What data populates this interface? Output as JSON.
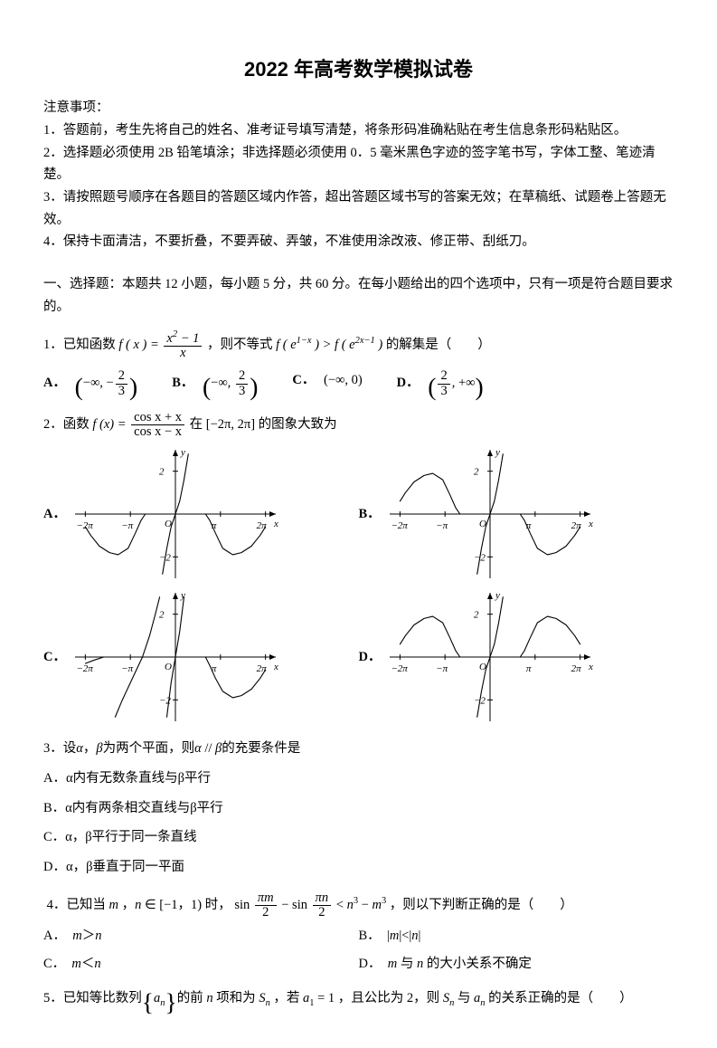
{
  "title": "2022 年高考数学模拟试卷",
  "instructions_head": "注意事项：",
  "instructions": [
    "1．答题前，考生先将自己的姓名、准考证号填写清楚，将条形码准确粘贴在考生信息条形码粘贴区。",
    "2．选择题必须使用 2B 铅笔填涂；非选择题必须使用 0．5 毫米黑色字迹的签字笔书写，字体工整、笔迹清楚。",
    "3．请按照题号顺序在各题目的答题区域内作答，超出答题区域书写的答案无效；在草稿纸、试题卷上答题无效。",
    "4．保持卡面清洁，不要折叠，不要弄破、弄皱，不准使用涂改液、修正带、刮纸刀。"
  ],
  "section1": "一、选择题：本题共 12 小题，每小题 5 分，共 60 分。在每小题给出的四个选项中，只有一项是符合题目要求的。",
  "q1": {
    "stem_pre": "1．已知函数",
    "f_lhs": "f ( x ) =",
    "frac_num": "x² − 1",
    "frac_den": "x",
    "stem_mid": "，则不等式",
    "ineq": "f ( e^{1−x} ) > f ( e^{2x−1} )",
    "stem_post": " 的解集是（　　）",
    "opts": {
      "A": "( −∞ , −2/3 )",
      "B": "( −∞ , 2/3 )",
      "C": "(−∞, 0)",
      "D": "( 2/3 , +∞ )"
    }
  },
  "q2": {
    "stem_pre": "2．函数",
    "f_lhs": "f (x) =",
    "frac_num": "cos x + x",
    "frac_den": "cos x − x",
    "stem_mid": "在",
    "interval": "[−2π, 2π]",
    "stem_post": "的图象大致为",
    "opt_labels": {
      "A": "A．",
      "B": "B．",
      "C": "C．",
      "D": "D．"
    },
    "chart": {
      "type": "line-function-sketch",
      "xlim": [
        -7,
        7
      ],
      "ylim": [
        -3,
        3
      ],
      "xticks": [
        {
          "v": -6.283,
          "label": "−2π"
        },
        {
          "v": -3.1416,
          "label": "−π"
        },
        {
          "v": 3.1416,
          "label": "π"
        },
        {
          "v": 6.283,
          "label": "2π"
        }
      ],
      "yticks": [
        {
          "v": 2,
          "label": "2"
        },
        {
          "v": -2,
          "label": "−2"
        }
      ],
      "axis_color": "#000000",
      "curve_color": "#000000",
      "tick_color": "#000000",
      "line_width": 1.1,
      "font_size": 11,
      "variants": {
        "A": {
          "segments": [
            [
              [
                -6.28,
                -0.6
              ],
              [
                -5.9,
                -1.0
              ],
              [
                -5.3,
                -1.5
              ],
              [
                -4.6,
                -1.8
              ],
              [
                -4.0,
                -1.9
              ],
              [
                -3.3,
                -1.6
              ],
              [
                -2.8,
                -0.9
              ],
              [
                -2.4,
                -0.3
              ],
              [
                -2.1,
                0
              ]
            ],
            [
              [
                -0.9,
                -2.8
              ],
              [
                -0.6,
                -1.6
              ],
              [
                -0.3,
                -0.6
              ],
              [
                0,
                0
              ],
              [
                0.3,
                0.6
              ],
              [
                0.6,
                1.6
              ],
              [
                0.9,
                2.8
              ]
            ],
            [
              [
                2.1,
                0
              ],
              [
                2.4,
                -0.3
              ],
              [
                2.8,
                -0.9
              ],
              [
                3.3,
                -1.6
              ],
              [
                4.0,
                -1.9
              ],
              [
                4.6,
                -1.8
              ],
              [
                5.3,
                -1.5
              ],
              [
                5.9,
                -1.0
              ],
              [
                6.28,
                -0.6
              ]
            ]
          ]
        },
        "B": {
          "segments": [
            [
              [
                -6.28,
                0.6
              ],
              [
                -5.9,
                1.0
              ],
              [
                -5.3,
                1.5
              ],
              [
                -4.6,
                1.8
              ],
              [
                -4.0,
                1.9
              ],
              [
                -3.3,
                1.6
              ],
              [
                -2.8,
                0.9
              ],
              [
                -2.4,
                0.3
              ],
              [
                -2.1,
                0
              ]
            ],
            [
              [
                -0.9,
                -2.8
              ],
              [
                -0.6,
                -1.6
              ],
              [
                -0.3,
                -0.6
              ],
              [
                0,
                0
              ],
              [
                0.3,
                0.6
              ],
              [
                0.6,
                1.6
              ],
              [
                0.9,
                2.8
              ]
            ],
            [
              [
                2.1,
                0
              ],
              [
                2.4,
                -0.3
              ],
              [
                2.8,
                -0.9
              ],
              [
                3.3,
                -1.6
              ],
              [
                4.0,
                -1.9
              ],
              [
                4.6,
                -1.8
              ],
              [
                5.3,
                -1.5
              ],
              [
                5.9,
                -1.0
              ],
              [
                6.28,
                -0.6
              ]
            ]
          ]
        },
        "C": {
          "segments": [
            [
              [
                -6.28,
                -0.3
              ],
              [
                -5.7,
                -0.15
              ],
              [
                -5.0,
                0
              ]
            ],
            [
              [
                -4.2,
                -2.8
              ],
              [
                -3.7,
                -2.0
              ],
              [
                -3.0,
                -1.0
              ],
              [
                -2.3,
                0
              ],
              [
                -1.8,
                1.0
              ],
              [
                -1.4,
                2.0
              ],
              [
                -1.1,
                2.8
              ]
            ],
            [
              [
                -0.6,
                -2.8
              ],
              [
                -0.3,
                -1.2
              ],
              [
                0,
                0
              ],
              [
                0.3,
                1.2
              ],
              [
                0.6,
                2.8
              ]
            ],
            [
              [
                2.1,
                0
              ],
              [
                2.4,
                -0.4
              ],
              [
                2.8,
                -1.0
              ],
              [
                3.3,
                -1.6
              ],
              [
                4.0,
                -1.9
              ],
              [
                4.6,
                -1.8
              ],
              [
                5.3,
                -1.5
              ],
              [
                5.9,
                -1.0
              ],
              [
                6.28,
                -0.6
              ]
            ]
          ]
        },
        "D": {
          "segments": [
            [
              [
                -6.28,
                0.6
              ],
              [
                -5.9,
                1.0
              ],
              [
                -5.3,
                1.5
              ],
              [
                -4.6,
                1.8
              ],
              [
                -4.0,
                1.9
              ],
              [
                -3.3,
                1.6
              ],
              [
                -2.8,
                0.9
              ],
              [
                -2.4,
                0.3
              ],
              [
                -2.1,
                0
              ]
            ],
            [
              [
                -0.9,
                -2.8
              ],
              [
                -0.6,
                -1.6
              ],
              [
                -0.3,
                -0.6
              ],
              [
                0,
                0
              ],
              [
                0.3,
                0.6
              ],
              [
                0.6,
                1.6
              ],
              [
                0.9,
                2.8
              ]
            ],
            [
              [
                2.1,
                0
              ],
              [
                2.4,
                0.3
              ],
              [
                2.8,
                0.9
              ],
              [
                3.3,
                1.6
              ],
              [
                4.0,
                1.9
              ],
              [
                4.6,
                1.8
              ],
              [
                5.3,
                1.5
              ],
              [
                5.9,
                1.0
              ],
              [
                6.28,
                0.6
              ]
            ]
          ]
        }
      }
    }
  },
  "q3": {
    "stem": "3．设α，β为两个平面，则α // β的充要条件是",
    "opts": {
      "A": "A．α内有无数条直线与β平行",
      "B": "B．α内有两条相交直线与β平行",
      "C": "C．α，β平行于同一条直线",
      "D": "D．α，β垂直于同一平面"
    }
  },
  "q4": {
    "stem_pre": "4．已知当 m ，n ∈ [−1，1) 时，",
    "expr_l1": "sin (πm/2) − sin (πn/2)",
    "expr_r": " < n³ − m³",
    "stem_post": "，则以下判断正确的是（　　）",
    "opts": {
      "A": "A．　m＞n",
      "B": "B．　|m|<|n|",
      "C": "C．　m＜n",
      "D": "D．　m 与 n 的大小关系不确定"
    }
  },
  "q5": {
    "stem": "5．已知等比数列 { aₙ } 的前 n 项和为 Sₙ ，若 a₁ = 1 ，且公比为 2，则 Sₙ 与 aₙ 的关系正确的是（　　）"
  }
}
